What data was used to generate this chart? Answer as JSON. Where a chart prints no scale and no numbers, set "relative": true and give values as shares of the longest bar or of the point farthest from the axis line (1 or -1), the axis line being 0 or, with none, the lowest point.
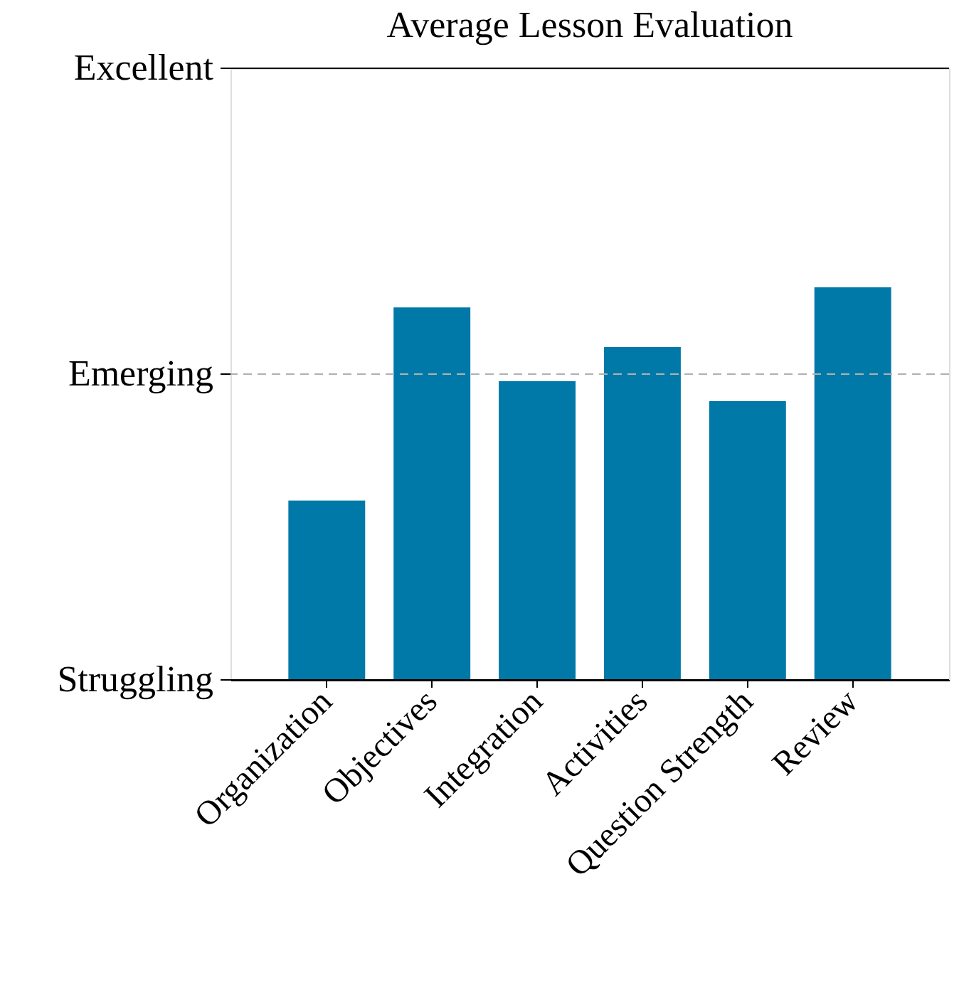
{
  "chart_data": {
    "type": "bar",
    "title": "Average Lesson Evaluation",
    "categories": [
      "Organization",
      "Objectives",
      "Integration",
      "Activities",
      "Question Strength",
      "Review"
    ],
    "values": [
      0.457,
      0.949,
      0.761,
      0.848,
      0.71,
      1
    ],
    "relative": true,
    "color": "#0079a8",
    "ref_lines": [
      {
        "axis": "y",
        "value": 0,
        "label": "Struggling",
        "line_style": "solid",
        "color": "#000000"
      },
      {
        "axis": "y",
        "value": 0.779,
        "label": "Emerging",
        "line_style": "dashed",
        "color": "#b0b0b0"
      },
      {
        "axis": "y",
        "value": 1.558,
        "label": "Excellent",
        "line_style": "solid",
        "color": "#000000"
      }
    ]
  }
}
